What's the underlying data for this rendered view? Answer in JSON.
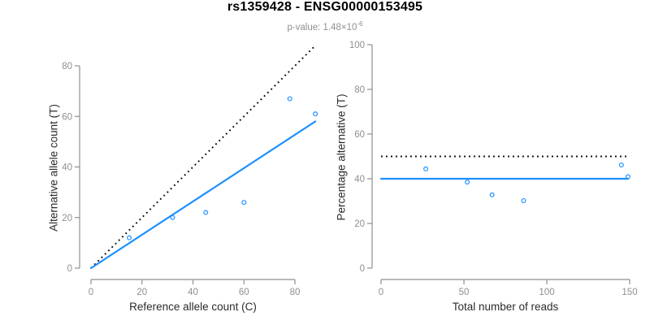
{
  "header": {
    "title": "rs1359428 - ENSG00000153495",
    "subtitle_prefix": "p-value: 1.48×10",
    "subtitle_exponent": "-6"
  },
  "colors": {
    "accent_blue": "#1E90FF",
    "identity_black": "#000000",
    "axis_gray": "#8F8F8F",
    "tick_label_gray": "#8F8F8F",
    "axis_title_dark": "#2B2B2B",
    "subtitle_gray": "#8F8F8F",
    "background": "#FFFFFF"
  },
  "chart_data": [
    {
      "type": "scatter",
      "name": "allele-counts",
      "title": "",
      "xlabel": "Reference allele count (C)",
      "ylabel": "Alternative allele count (T)",
      "xlim": [
        0,
        80
      ],
      "ylim": [
        0,
        80
      ],
      "x_ticks": [
        0,
        20,
        40,
        60,
        80
      ],
      "y_ticks": [
        0,
        20,
        40,
        60,
        80
      ],
      "grid": false,
      "legend": false,
      "point_style": "open-circle",
      "points": [
        [
          15,
          12
        ],
        [
          32,
          20
        ],
        [
          45,
          22
        ],
        [
          60,
          26
        ],
        [
          78,
          67
        ],
        [
          88,
          61
        ]
      ],
      "lines": [
        {
          "name": "identity-line",
          "style": "dotted",
          "color": "#000000",
          "x1": 0,
          "y1": 0,
          "x2": 88,
          "y2": 88
        },
        {
          "name": "fit-line",
          "style": "solid",
          "color": "#1E90FF",
          "x1": 0,
          "y1": 0,
          "x2": 88,
          "y2": 58
        }
      ]
    },
    {
      "type": "scatter",
      "name": "percentage-alternative",
      "title": "",
      "xlabel": "Total number of reads",
      "ylabel": "Percentage alternative (T)",
      "xlim": [
        0,
        150
      ],
      "ylim": [
        0,
        100
      ],
      "x_ticks": [
        0,
        50,
        100,
        150
      ],
      "y_ticks": [
        0,
        20,
        40,
        60,
        80,
        100
      ],
      "grid": false,
      "legend": false,
      "point_style": "open-circle",
      "points": [
        [
          27,
          44.4
        ],
        [
          52,
          38.5
        ],
        [
          67,
          32.8
        ],
        [
          86,
          30.2
        ],
        [
          145,
          46.2
        ],
        [
          149,
          40.9
        ]
      ],
      "lines": [
        {
          "name": "identity-line",
          "style": "dotted",
          "color": "#000000",
          "x1": 0,
          "y1": 50,
          "x2": 150,
          "y2": 50
        },
        {
          "name": "fit-line",
          "style": "solid",
          "color": "#1E90FF",
          "x1": 0,
          "y1": 40,
          "x2": 149,
          "y2": 40
        }
      ]
    }
  ]
}
